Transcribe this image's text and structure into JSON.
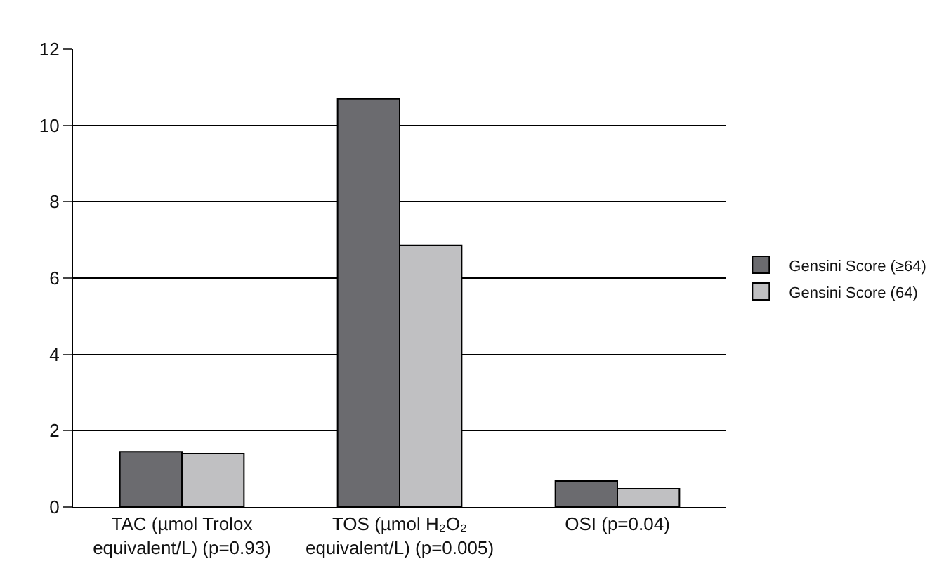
{
  "chart_data": {
    "type": "bar",
    "categories": [
      "TAC (µmol Trolox equivalent/L) (p=0.93)",
      "TOS (µmol H₂O₂ equivalent/L) (p=0.005)",
      "OSI (p=0.04)"
    ],
    "series": [
      {
        "name": "Gensini Score (≥64)",
        "color": "#6b6b6f",
        "values": [
          1.45,
          10.7,
          0.68
        ]
      },
      {
        "name": "Gensini Score (64)",
        "color": "#c0c0c2",
        "values": [
          1.4,
          6.85,
          0.48
        ]
      }
    ],
    "ylim": [
      0,
      12
    ],
    "yticks": [
      0,
      2,
      4,
      6,
      8,
      10,
      12
    ],
    "grid": "y",
    "legend": "right"
  }
}
